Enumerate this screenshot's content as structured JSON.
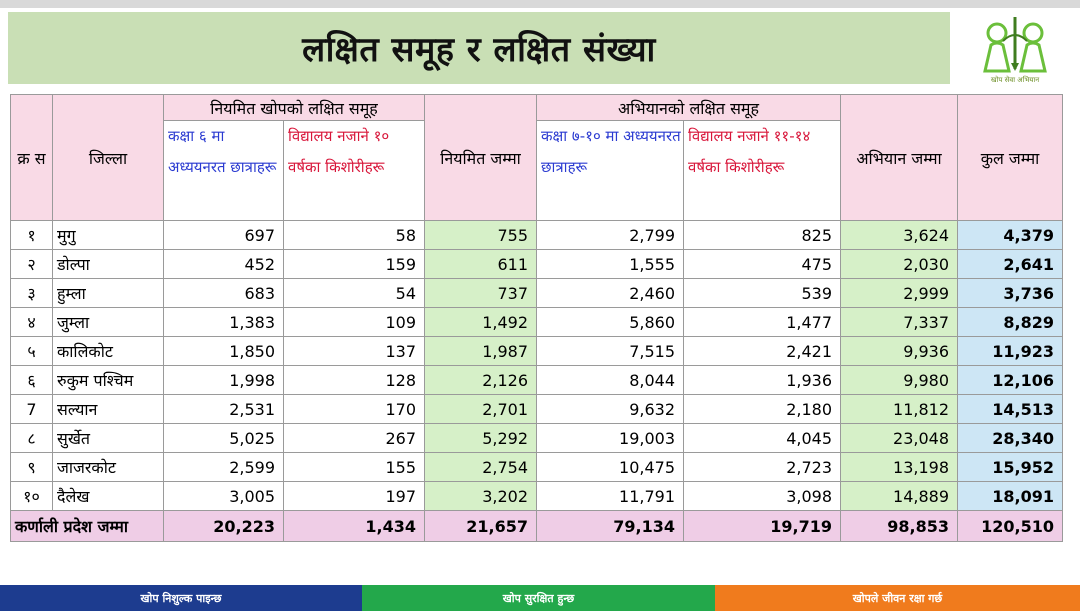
{
  "title": "लक्षित समूह र लक्षित संख्या",
  "logo": {
    "caption": "खोप सेवा अभियान"
  },
  "headers": {
    "sn": "क्र स",
    "district": "जिल्ला",
    "regular_group": "नियमित खोपको लक्षित समूह",
    "regular_students": "कक्षा ६ मा अध्ययनरत छात्राहरू",
    "regular_out_of_school": "विद्यालय नजाने १० वर्षका किशोरीहरू",
    "regular_total": "नियमित जम्मा",
    "campaign_group": "अभियानको लक्षित समूह",
    "campaign_students": "कक्षा ७-१० मा अध्ययनरत छात्राहरू",
    "campaign_out_of_school": "विद्यालय नजाने ११-१४ वर्षका किशोरीहरू",
    "campaign_total": "अभियान जम्मा",
    "grand_total": "कुल जम्मा"
  },
  "rows": [
    {
      "sn": "१",
      "district": "मुगु",
      "c1": "697",
      "c2": "58",
      "c3": "755",
      "c4": "2,799",
      "c5": "825",
      "c6": "3,624",
      "c7": "4,379"
    },
    {
      "sn": "२",
      "district": "डोल्पा",
      "c1": "452",
      "c2": "159",
      "c3": "611",
      "c4": "1,555",
      "c5": "475",
      "c6": "2,030",
      "c7": "2,641"
    },
    {
      "sn": "३",
      "district": "हुम्ला",
      "c1": "683",
      "c2": "54",
      "c3": "737",
      "c4": "2,460",
      "c5": "539",
      "c6": "2,999",
      "c7": "3,736"
    },
    {
      "sn": "४",
      "district": "जुम्ला",
      "c1": "1,383",
      "c2": "109",
      "c3": "1,492",
      "c4": "5,860",
      "c5": "1,477",
      "c6": "7,337",
      "c7": "8,829"
    },
    {
      "sn": "५",
      "district": "कालिकोट",
      "c1": "1,850",
      "c2": "137",
      "c3": "1,987",
      "c4": "7,515",
      "c5": "2,421",
      "c6": "9,936",
      "c7": "11,923"
    },
    {
      "sn": "६",
      "district": "रुकुम पश्चिम",
      "c1": "1,998",
      "c2": "128",
      "c3": "2,126",
      "c4": "8,044",
      "c5": "1,936",
      "c6": "9,980",
      "c7": "12,106"
    },
    {
      "sn": "7",
      "district": "सल्यान",
      "c1": "2,531",
      "c2": "170",
      "c3": "2,701",
      "c4": "9,632",
      "c5": "2,180",
      "c6": "11,812",
      "c7": "14,513"
    },
    {
      "sn": "८",
      "district": "सुर्खेत",
      "c1": "5,025",
      "c2": "267",
      "c3": "5,292",
      "c4": "19,003",
      "c5": "4,045",
      "c6": "23,048",
      "c7": "28,340"
    },
    {
      "sn": "९",
      "district": "जाजरकोट",
      "c1": "2,599",
      "c2": "155",
      "c3": "2,754",
      "c4": "10,475",
      "c5": "2,723",
      "c6": "13,198",
      "c7": "15,952"
    },
    {
      "sn": "१०",
      "district": "दैलेख",
      "c1": "3,005",
      "c2": "197",
      "c3": "3,202",
      "c4": "11,791",
      "c5": "3,098",
      "c6": "14,889",
      "c7": "18,091"
    }
  ],
  "total": {
    "label": "कर्णाली प्रदेश जम्मा",
    "c1": "20,223",
    "c2": "1,434",
    "c3": "21,657",
    "c4": "79,134",
    "c5": "19,719",
    "c6": "98,853",
    "c7": "120,510"
  },
  "footer": {
    "left": "खोप निशुल्क पाइन्छ",
    "middle": "खोप सुरक्षित हुन्छ",
    "right": "खोपले जीवन रक्षा गर्छ"
  },
  "colors": {
    "title_band": "#c9dfb5",
    "header_pink": "#f9dae6",
    "green_col": "#d6f0c8",
    "blue_col": "#cde6f5",
    "total_row": "#efcde6",
    "footer_blue": "#1d3c8f",
    "footer_green": "#23a84b",
    "footer_orange": "#f07b1d"
  }
}
